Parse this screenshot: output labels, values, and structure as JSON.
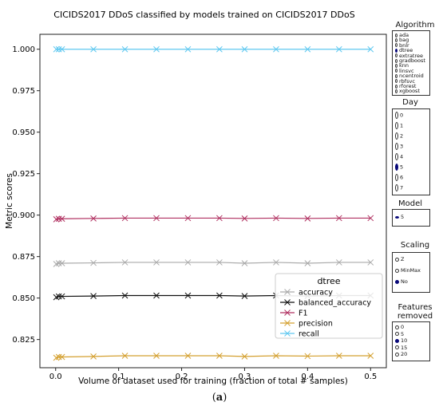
{
  "chart_data": {
    "type": "line",
    "title": "CICIDS2017 DDoS classified by models trained on CICIDS2017 DDoS",
    "xlabel": "Volume of dataset used for training (fraction of total # samples)",
    "ylabel": "Metric scores",
    "xlim": [
      -0.025,
      0.525
    ],
    "ylim": [
      0.808,
      1.009
    ],
    "xticks": [
      0.0,
      0.1,
      0.2,
      0.3,
      0.4,
      0.5
    ],
    "xtick_labels": [
      "0.0",
      "0.1",
      "0.2",
      "0.3",
      "0.4",
      "0.5"
    ],
    "yticks": [
      0.825,
      0.85,
      0.875,
      0.9,
      0.925,
      0.95,
      0.975,
      1.0
    ],
    "ytick_labels": [
      "0.825",
      "0.850",
      "0.875",
      "0.900",
      "0.925",
      "0.950",
      "0.975",
      "1.000"
    ],
    "grid": false,
    "legend_title": "dtree",
    "legend_position": "lower-right",
    "x": [
      0.001,
      0.005,
      0.01,
      0.06,
      0.11,
      0.16,
      0.21,
      0.26,
      0.3,
      0.35,
      0.4,
      0.45,
      0.5
    ],
    "series": [
      {
        "name": "accuracy",
        "color": "#aaaaaa",
        "values": [
          0.8705,
          0.871,
          0.871,
          0.8712,
          0.8715,
          0.8715,
          0.8715,
          0.8715,
          0.871,
          0.8715,
          0.871,
          0.8715,
          0.8715
        ]
      },
      {
        "name": "balanced_accuracy",
        "color": "#111111",
        "values": [
          0.8505,
          0.851,
          0.851,
          0.8512,
          0.8515,
          0.8515,
          0.8515,
          0.8515,
          0.8512,
          0.8515,
          0.8512,
          0.8515,
          0.8515
        ]
      },
      {
        "name": "F1",
        "color": "#b03060",
        "values": [
          0.8975,
          0.8978,
          0.8978,
          0.898,
          0.8982,
          0.8982,
          0.8982,
          0.8982,
          0.898,
          0.8982,
          0.898,
          0.8982,
          0.8982
        ]
      },
      {
        "name": "precision",
        "color": "#d4a030",
        "values": [
          0.814,
          0.8145,
          0.8145,
          0.8148,
          0.8152,
          0.8152,
          0.8152,
          0.8152,
          0.8148,
          0.8152,
          0.815,
          0.8152,
          0.8152
        ]
      },
      {
        "name": "recall",
        "color": "#5fc8f0",
        "values": [
          1.0,
          1.0,
          1.0,
          1.0,
          1.0,
          1.0,
          1.0,
          1.0,
          1.0,
          1.0,
          1.0,
          1.0,
          1.0
        ]
      }
    ]
  },
  "controls": {
    "accent_color": "#0a0a7a",
    "algorithm": {
      "title": "Algorithm",
      "options": [
        "ada",
        "bag",
        "bnlr",
        "dtree",
        "extratree",
        "gradboost",
        "knn",
        "linsvc",
        "ncentroid",
        "rbfsvc",
        "rforest",
        "xgboost"
      ],
      "selected": "dtree"
    },
    "day": {
      "title": "Day",
      "options": [
        "0",
        "1",
        "2",
        "3",
        "4",
        "5",
        "6",
        "7"
      ],
      "selected": "5"
    },
    "model": {
      "title": "Model",
      "options": [
        "5"
      ],
      "selected": "5"
    },
    "scaling": {
      "title": "Scaling",
      "options": [
        "Z",
        "MinMax",
        "No"
      ],
      "selected": "No"
    },
    "features": {
      "title_line1": "Features",
      "title_line2": "removed",
      "options": [
        "0",
        "5",
        "10",
        "15",
        "20"
      ],
      "selected": "10"
    }
  },
  "caption": {
    "label": "(a)"
  }
}
